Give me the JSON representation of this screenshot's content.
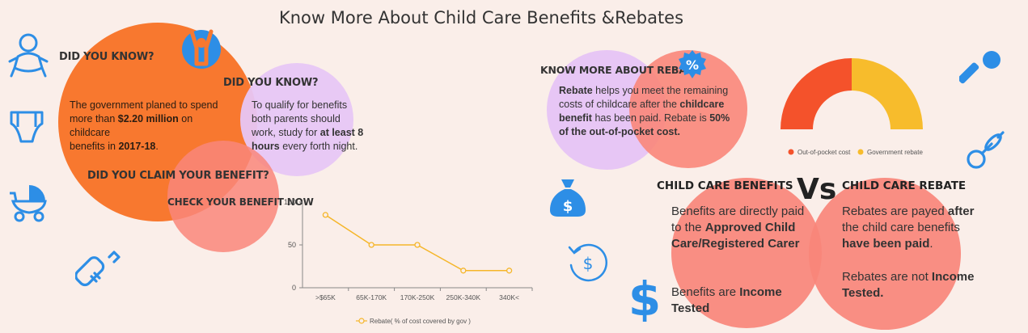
{
  "title": "Know More About Child Care Benefits &Rebates",
  "left": {
    "did_you_know_1": "DID YOU KNOW?",
    "p1": [
      "The government planed to spend",
      "more than ",
      "$2.20 million",
      " on childcare",
      "benefits in ",
      "2017-18",
      "."
    ],
    "did_you_know_2": "DID YOU KNOW?",
    "p2": [
      "To qualify for benefits",
      "both parents should",
      "work, study for ",
      "at least 8",
      "hours",
      " every forth night."
    ],
    "claim": "DID YOU CLAIM YOUR BENEFIT?",
    "check": "CHECK YOUR BENEFIT NOW"
  },
  "rebate_box": {
    "heading": "KNOW MORE ABOUT REBATE",
    "b1": "Rebate",
    "t1": " helps you meet the remaining",
    "t2": "costs of childcare after the ",
    "b2": "childcare",
    "b3": "benefit",
    "t3": " has been paid. Rebate is ",
    "b4": "50%",
    "b5": "of the out-of-pocket cost."
  },
  "compare": {
    "vs": "Vs",
    "benefits_title": "CHILD CARE BENEFITS",
    "rebate_title": "CHILD CARE REBATE",
    "ben_t1": "Benefits are directly paid",
    "ben_t2": "to the ",
    "ben_b1": "Approved Child",
    "ben_b2": "Care/Registered Carer",
    "ben_t3": "Benefits are ",
    "ben_b3": "Income",
    "ben_b4": "Tested",
    "reb_t1": "Rebates are payed ",
    "reb_b1": "after",
    "reb_t2": "the child care benefits",
    "reb_b2": "have been paid",
    "reb_t3": ".",
    "reb_t4": "Rebates are not ",
    "reb_b3": "Income",
    "reb_b4": "Tested."
  },
  "icons": [
    "baby-icon",
    "child-arms-up-icon",
    "diaper-icon",
    "stroller-icon",
    "baby-bottle-icon",
    "percent-badge-icon",
    "money-bag-icon",
    "refund-cycle-icon",
    "dollar-icon",
    "rattle-icon",
    "pacifier-icon"
  ],
  "colors": {
    "orange": "#f8782f",
    "salmon": "#f9867a",
    "lavender": "#e7c6f5",
    "blue": "#2d8ee6",
    "red": "#f4522b",
    "yellow": "#f7bc2c",
    "line": "#f5b62a"
  },
  "chart_data": [
    {
      "type": "line",
      "categories": [
        ">$65K",
        "65K-170K",
        "170K-250K",
        "250K-340K",
        "340K<"
      ],
      "series": [
        {
          "name": "Rebate( % of cost covered by gov )",
          "values": [
            85,
            50,
            50,
            20,
            20
          ]
        }
      ],
      "ylim": [
        0,
        100
      ],
      "yticks": [
        "0",
        "50",
        "100"
      ],
      "legend": "bottom",
      "grid": false
    },
    {
      "type": "pie",
      "style": "half-donut",
      "labels": [
        "Out-of-pocket cost",
        "Government rebate"
      ],
      "values": [
        50,
        50
      ],
      "legend": "bottom"
    }
  ]
}
